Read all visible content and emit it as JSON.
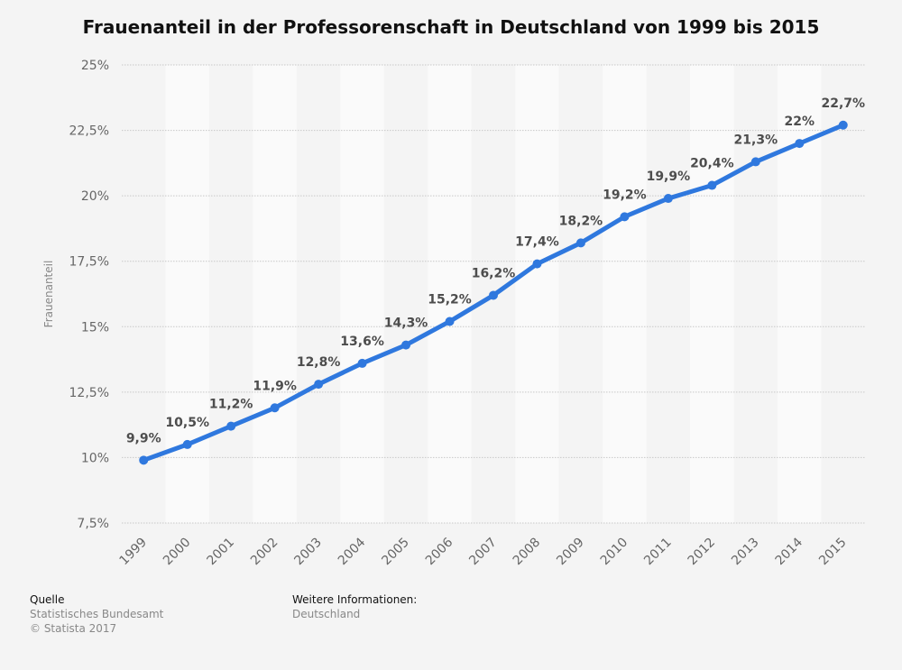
{
  "title": "Frauenanteil in der Professorenschaft in Deutschland von 1999 bis 2015",
  "chart_data": {
    "type": "line",
    "title": "Frauenanteil in der Professorenschaft in Deutschland von 1999 bis 2015",
    "xlabel": "",
    "ylabel": "Frauenanteil",
    "categories": [
      "1999",
      "2000",
      "2001",
      "2002",
      "2003",
      "2004",
      "2005",
      "2006",
      "2007",
      "2008",
      "2009",
      "2010",
      "2011",
      "2012",
      "2013",
      "2014",
      "2015"
    ],
    "series": [
      {
        "values": [
          9.9,
          10.5,
          11.2,
          11.9,
          12.8,
          13.6,
          14.3,
          15.2,
          16.2,
          17.4,
          18.2,
          19.2,
          19.9,
          20.4,
          21.3,
          22.0,
          22.7
        ],
        "labels": [
          "9,9%",
          "10,5%",
          "11,2%",
          "11,9%",
          "12,8%",
          "13,6%",
          "14,3%",
          "15,2%",
          "16,2%",
          "17,4%",
          "18,2%",
          "19,2%",
          "19,9%",
          "20,4%",
          "21,3%",
          "22%",
          "22,7%"
        ]
      }
    ],
    "ylim": [
      7.5,
      25
    ],
    "yticks": [
      7.5,
      10,
      12.5,
      15,
      17.5,
      20,
      22.5,
      25
    ],
    "ytick_labels": [
      "7,5%",
      "10%",
      "12,5%",
      "15%",
      "17,5%",
      "20%",
      "22,5%",
      "25%"
    ],
    "grid": true,
    "line_color": "#2f78de",
    "label_color": "#4d4d4d"
  },
  "footer": {
    "source_heading": "Quelle",
    "source_name": "Statistisches Bundesamt",
    "copyright": "© Statista 2017",
    "info_heading": "Weitere Informationen:",
    "info_value": "Deutschland"
  }
}
